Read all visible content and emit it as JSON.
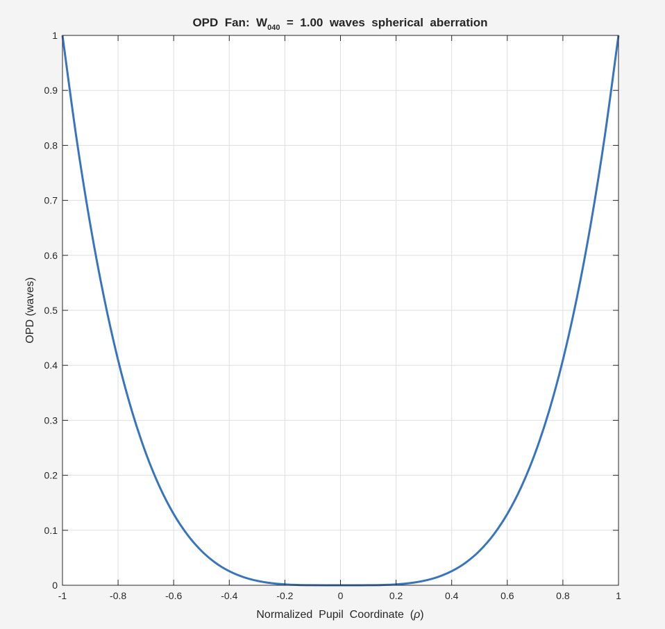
{
  "chart_data": {
    "type": "line",
    "title": {
      "prefix": "OPD  Fan:  W",
      "subscript": "040",
      "suffix": "  =  1.00  waves  spherical  aberration"
    },
    "xlabel": {
      "text": "Normalized  Pupil  Coordinate  (",
      "symbol": "ρ",
      "close": ")"
    },
    "ylabel": "OPD (waves)",
    "xlim": [
      -1,
      1
    ],
    "ylim": [
      0,
      1
    ],
    "xticks": [
      -1,
      -0.8,
      -0.6,
      -0.4,
      -0.2,
      0,
      0.2,
      0.4,
      0.6,
      0.8,
      1
    ],
    "xtick_labels": [
      "-1",
      "-0.8",
      "-0.6",
      "-0.4",
      "-0.2",
      "0",
      "0.2",
      "0.4",
      "0.6",
      "0.8",
      "1"
    ],
    "yticks": [
      0,
      0.1,
      0.2,
      0.3,
      0.4,
      0.5,
      0.6,
      0.7,
      0.8,
      0.9,
      1
    ],
    "ytick_labels": [
      "0",
      "0.1",
      "0.2",
      "0.3",
      "0.4",
      "0.5",
      "0.6",
      "0.7",
      "0.8",
      "0.9",
      "1"
    ],
    "grid": true,
    "series": [
      {
        "color": "#3674c0",
        "x": [
          -1,
          -0.95,
          -0.9,
          -0.85,
          -0.8,
          -0.75,
          -0.7,
          -0.65,
          -0.6,
          -0.55,
          -0.5,
          -0.45,
          -0.4,
          -0.35,
          -0.3,
          -0.25,
          -0.2,
          -0.15,
          -0.1,
          -0.05,
          0,
          0.05,
          0.1,
          0.15,
          0.2,
          0.25,
          0.3,
          0.35,
          0.4,
          0.45,
          0.5,
          0.55,
          0.6,
          0.65,
          0.7,
          0.75,
          0.8,
          0.85,
          0.9,
          0.95,
          1
        ],
        "y": [
          1,
          0.8145,
          0.6561,
          0.522,
          0.4096,
          0.3164,
          0.2401,
          0.1785,
          0.1296,
          0.0915,
          0.0625,
          0.041,
          0.0256,
          0.015,
          0.0081,
          0.0039,
          0.0016,
          0.0005,
          0.0001,
          0,
          0,
          0,
          0.0001,
          0.0005,
          0.0016,
          0.0039,
          0.0081,
          0.015,
          0.0256,
          0.041,
          0.0625,
          0.0915,
          0.1296,
          0.1785,
          0.2401,
          0.3164,
          0.4096,
          0.522,
          0.6561,
          0.8145,
          1
        ]
      }
    ]
  }
}
